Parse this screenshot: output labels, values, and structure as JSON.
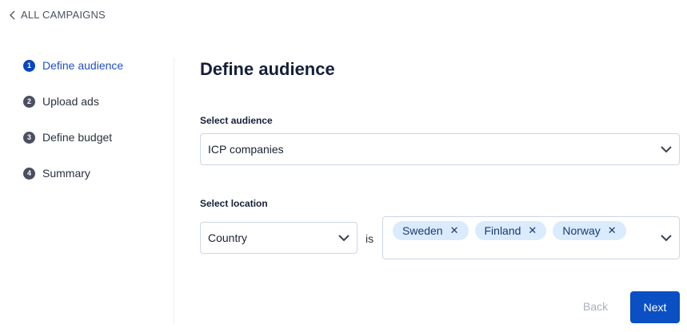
{
  "nav": {
    "back_label": "ALL CAMPAIGNS"
  },
  "steps": [
    {
      "num": "1",
      "label": "Define audience",
      "active": true
    },
    {
      "num": "2",
      "label": "Upload ads"
    },
    {
      "num": "3",
      "label": "Define budget"
    },
    {
      "num": "4",
      "label": "Summary"
    }
  ],
  "main": {
    "title": "Define audience",
    "audience_label": "Select audience",
    "audience_value": "ICP companies",
    "location_label": "Select location",
    "location_type": "Country",
    "operator": "is",
    "locations": [
      "Sweden",
      "Finland",
      "Norway"
    ],
    "remove_glyph": "✕"
  },
  "footer": {
    "back": "Back",
    "next": "Next"
  },
  "colors": {
    "accent": "#0a4fc4",
    "tag_bg": "#d9ebfd"
  }
}
